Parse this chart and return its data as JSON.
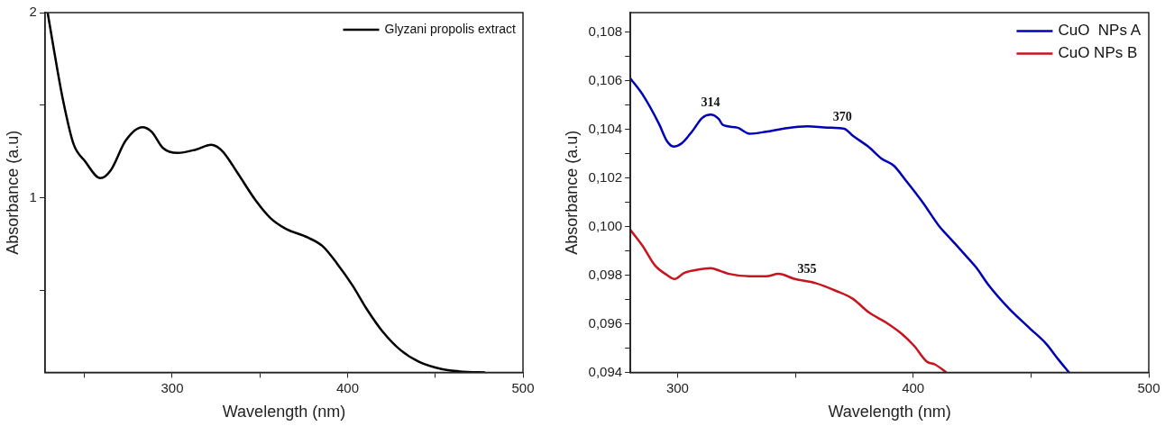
{
  "chart_data": [
    {
      "type": "line",
      "xlabel": "Wavelength (nm)",
      "ylabel": "Absorbance (a.u)",
      "xlim": [
        227.5,
        500
      ],
      "ylim": [
        0.06,
        2
      ],
      "xticks": [
        {
          "value": 250,
          "label": null
        },
        300,
        {
          "value": 350,
          "label": null
        },
        400,
        {
          "value": 450,
          "label": null
        },
        500
      ],
      "yticks": [
        {
          "value": 0.5,
          "label": null
        },
        1,
        {
          "value": 1.5,
          "label": null
        },
        2
      ],
      "legend": "top right",
      "marker": "none",
      "line_style": "solid",
      "series": [
        {
          "name": "Glyzani propolis extract",
          "color": "#000000",
          "x": [
            229,
            232.2,
            237.5,
            243.8,
            250.2,
            259.1,
            265,
            273.5,
            283,
            288.3,
            294.7,
            303.1,
            313.7,
            322.2,
            328.6,
            337,
            347.6,
            356,
            364.6,
            377.3,
            385.8,
            394.2,
            402.7,
            411.2,
            419.7,
            430.3,
            440.9,
            453.6,
            468.4,
            478
          ],
          "values": [
            2.0,
            1.82,
            1.54,
            1.29,
            1.2,
            1.107,
            1.15,
            1.31,
            1.382,
            1.357,
            1.27,
            1.243,
            1.262,
            1.287,
            1.253,
            1.139,
            0.987,
            0.892,
            0.835,
            0.787,
            0.74,
            0.644,
            0.53,
            0.397,
            0.283,
            0.179,
            0.116,
            0.078,
            0.062,
            0.06
          ]
        }
      ]
    },
    {
      "type": "line",
      "xlabel": "Wavelength (nm)",
      "ylabel": "Absorbance (a.u)",
      "xlim": [
        280,
        500
      ],
      "ylim": [
        0.094,
        0.1088
      ],
      "xticks": [
        300,
        {
          "value": 350,
          "label": null
        },
        400,
        {
          "value": 450,
          "label": null
        },
        500
      ],
      "yticks": [
        {
          "value": 0.094,
          "label": "0,094"
        },
        {
          "value": 0.095,
          "label": null
        },
        {
          "value": 0.096,
          "label": "0,096"
        },
        {
          "value": 0.097,
          "label": null
        },
        {
          "value": 0.098,
          "label": "0,098"
        },
        {
          "value": 0.099,
          "label": null
        },
        {
          "value": 0.1,
          "label": "0,100"
        },
        {
          "value": 0.101,
          "label": null
        },
        {
          "value": 0.102,
          "label": "0,102"
        },
        {
          "value": 0.103,
          "label": null
        },
        {
          "value": 0.104,
          "label": "0,104"
        },
        {
          "value": 0.105,
          "label": null
        },
        {
          "value": 0.106,
          "label": "0,106"
        },
        {
          "value": 0.107,
          "label": null
        },
        {
          "value": 0.108,
          "label": "0,108"
        }
      ],
      "legend": "top right",
      "marker": "none",
      "line_style": "solid",
      "annotations": [
        {
          "text": "314",
          "x": 314,
          "y": 0.1046
        },
        {
          "text": "370",
          "x": 370,
          "y": 0.10402
        },
        {
          "text": "355",
          "x": 355,
          "y": 0.09775
        }
      ],
      "series": [
        {
          "name": "CuO  NPs A",
          "color": "#0000b4",
          "x": [
            280,
            285.1,
            292.1,
            295.6,
            298.3,
            301.7,
            306.1,
            310.5,
            314,
            317.5,
            319.2,
            325.3,
            330.6,
            337.6,
            344.6,
            355.1,
            363.8,
            370.8,
            374.3,
            381.3,
            386.5,
            391.8,
            397,
            404,
            411,
            416.3,
            421.5,
            426.7,
            432,
            440.7,
            449.5,
            456.5,
            461.7,
            466.1
          ],
          "values": [
            0.10609,
            0.10544,
            0.10423,
            0.1035,
            0.10329,
            0.10342,
            0.1039,
            0.10447,
            0.1046,
            0.10442,
            0.10418,
            0.10407,
            0.10382,
            0.1039,
            0.10402,
            0.10412,
            0.10407,
            0.10402,
            0.10374,
            0.10326,
            0.1028,
            0.1025,
            0.10188,
            0.101,
            0.10002,
            0.09945,
            0.09889,
            0.09832,
            0.09759,
            0.09662,
            0.09581,
            0.09517,
            0.09452,
            0.094
          ]
        },
        {
          "name": "CuO NPs B",
          "color": "#c8141e",
          "x": [
            280,
            285.1,
            290.4,
            295.6,
            298.8,
            302.6,
            307.9,
            314,
            318.4,
            321.9,
            330.6,
            337.6,
            342.8,
            349.8,
            358.6,
            367.3,
            374.3,
            381.3,
            388.3,
            395.3,
            400.5,
            405.8,
            409.3,
            414
          ],
          "values": [
            0.09986,
            0.09921,
            0.0984,
            0.098,
            0.09784,
            0.09808,
            0.09821,
            0.09829,
            0.09816,
            0.09805,
            0.09795,
            0.09795,
            0.09805,
            0.09784,
            0.09767,
            0.09735,
            0.09703,
            0.09646,
            0.09606,
            0.09557,
            0.09508,
            0.09444,
            0.09432,
            0.094
          ]
        }
      ]
    }
  ]
}
